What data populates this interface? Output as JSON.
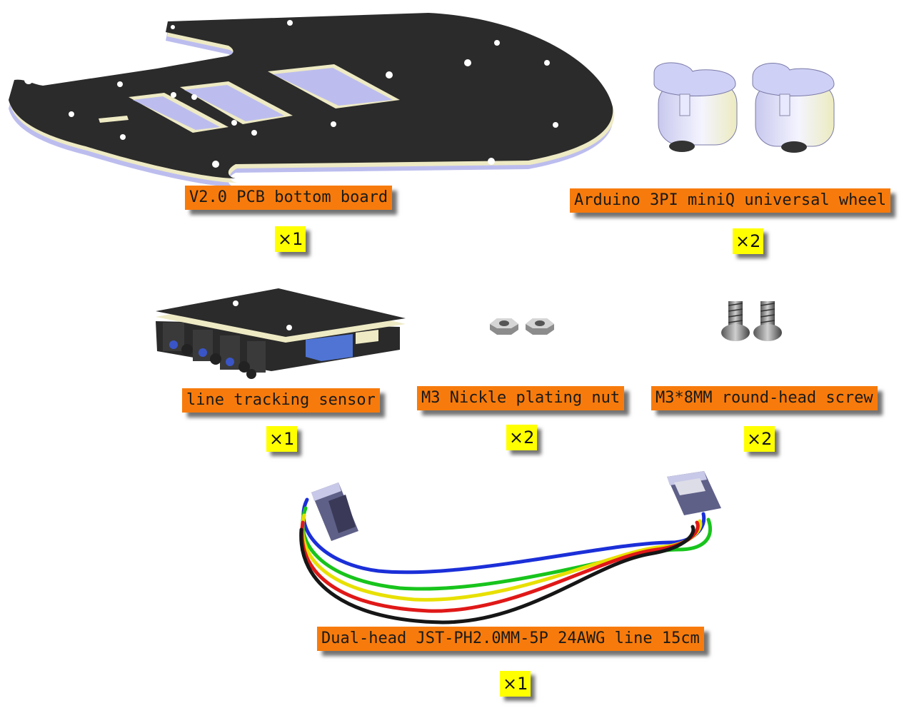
{
  "parts": [
    {
      "name": "V2.0 PCB bottom board",
      "qty": "×1"
    },
    {
      "name": "Arduino 3PI miniQ universal wheel",
      "qty": "×2"
    },
    {
      "name": "line tracking sensor",
      "qty": "×1"
    },
    {
      "name": "M3 Nickle plating nut",
      "qty": "×2"
    },
    {
      "name": "M3*8MM round-head screw",
      "qty": "×2"
    },
    {
      "name": "Dual-head JST-PH2.0MM-5P 24AWG line 15cm",
      "qty": "×1"
    }
  ],
  "colors": {
    "label_bg": "#f77b0c",
    "qty_bg": "#ffff00",
    "board": "#2b2b2b",
    "board_edge": "#f0ecc8",
    "wire_blue": "#1b2fd8",
    "wire_green": "#18c41c",
    "wire_yellow": "#e8e000",
    "wire_red": "#e01818",
    "wire_black": "#161616"
  }
}
